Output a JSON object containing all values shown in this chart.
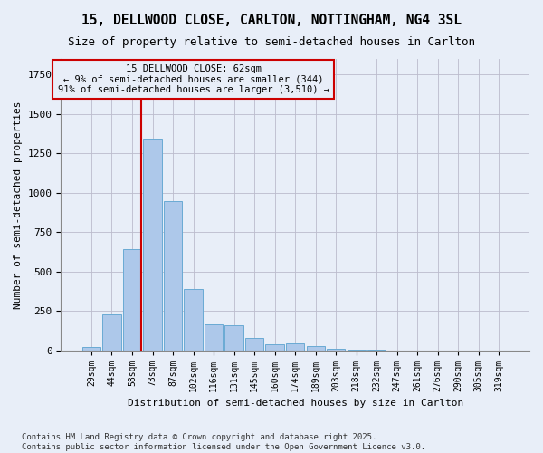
{
  "title_line1": "15, DELLWOOD CLOSE, CARLTON, NOTTINGHAM, NG4 3SL",
  "title_line2": "Size of property relative to semi-detached houses in Carlton",
  "xlabel": "Distribution of semi-detached houses by size in Carlton",
  "ylabel": "Number of semi-detached properties",
  "categories": [
    "29sqm",
    "44sqm",
    "58sqm",
    "73sqm",
    "87sqm",
    "102sqm",
    "116sqm",
    "131sqm",
    "145sqm",
    "160sqm",
    "174sqm",
    "189sqm",
    "203sqm",
    "218sqm",
    "232sqm",
    "247sqm",
    "261sqm",
    "276sqm",
    "290sqm",
    "305sqm",
    "319sqm"
  ],
  "values": [
    20,
    230,
    645,
    1345,
    950,
    390,
    165,
    160,
    80,
    40,
    45,
    28,
    12,
    5,
    2,
    1,
    1,
    0,
    0,
    0,
    0
  ],
  "bar_color": "#adc8ea",
  "bar_edge_color": "#6aaad4",
  "vline_color": "#cc0000",
  "vline_x": 2.45,
  "annotation_title": "15 DELLWOOD CLOSE: 62sqm",
  "annotation_line1": "← 9% of semi-detached houses are smaller (344)",
  "annotation_line2": "91% of semi-detached houses are larger (3,510) →",
  "ylim_max": 1850,
  "footnote1": "Contains HM Land Registry data © Crown copyright and database right 2025.",
  "footnote2": "Contains public sector information licensed under the Open Government Licence v3.0.",
  "bg_color": "#e8eef8"
}
